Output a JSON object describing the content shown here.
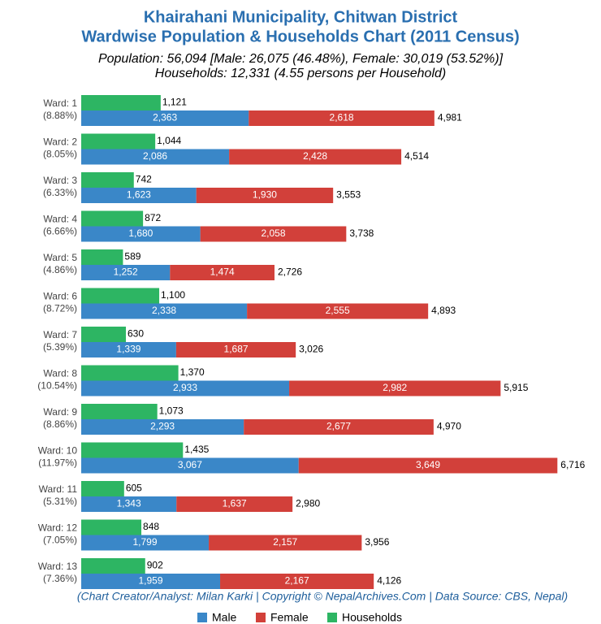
{
  "chart_data": {
    "type": "bar",
    "title": [
      "Khairahani Municipality, Chitwan District",
      "Wardwise Population & Households Chart (2011 Census)"
    ],
    "subtitle": [
      "Population: 56,094 [Male: 26,075 (46.48%), Female: 30,019 (53.52%)]",
      "Households: 12,331 (4.55 persons per Household)"
    ],
    "footer": "(Chart Creator/Analyst: Milan Karki | Copyright © NepalArchives.Com | Data Source: CBS, Nepal)",
    "categories": [
      "Ward: 1",
      "Ward: 2",
      "Ward: 3",
      "Ward: 4",
      "Ward: 5",
      "Ward: 6",
      "Ward: 7",
      "Ward: 8",
      "Ward: 9",
      "Ward: 10",
      "Ward: 11",
      "Ward: 12",
      "Ward: 13"
    ],
    "shares": [
      "(8.88%)",
      "(8.05%)",
      "(6.33%)",
      "(6.66%)",
      "(4.86%)",
      "(8.72%)",
      "(5.39%)",
      "(10.54%)",
      "(8.86%)",
      "(11.97%)",
      "(5.31%)",
      "(7.05%)",
      "(7.36%)"
    ],
    "series": [
      {
        "name": "Male",
        "color": "#3a87c8",
        "values": [
          2363,
          2086,
          1623,
          1680,
          1252,
          2338,
          1339,
          2933,
          2293,
          3067,
          1343,
          1799,
          1959
        ],
        "value_labels": [
          "2,363",
          "2,086",
          "1,623",
          "1,680",
          "1,252",
          "2,338",
          "1,339",
          "2,933",
          "2,293",
          "3,067",
          "1,343",
          "1,799",
          "1,959"
        ]
      },
      {
        "name": "Female",
        "color": "#d2403a",
        "values": [
          2618,
          2428,
          1930,
          2058,
          1474,
          2555,
          1687,
          2982,
          2677,
          3649,
          1637,
          2157,
          2167
        ],
        "value_labels": [
          "2,618",
          "2,428",
          "1,930",
          "2,058",
          "1,474",
          "2,555",
          "1,687",
          "2,982",
          "2,677",
          "3,649",
          "1,637",
          "2,157",
          "2,167"
        ]
      },
      {
        "name": "Households",
        "color": "#2db563",
        "values": [
          1121,
          1044,
          742,
          872,
          589,
          1100,
          630,
          1370,
          1073,
          1435,
          605,
          848,
          902
        ],
        "value_labels": [
          "1,121",
          "1,044",
          "742",
          "872",
          "589",
          "1,100",
          "630",
          "1,370",
          "1,073",
          "1,435",
          "605",
          "848",
          "902"
        ]
      }
    ],
    "totals": {
      "values": [
        4981,
        4514,
        3553,
        3738,
        2726,
        4893,
        3026,
        5915,
        4970,
        6716,
        2980,
        3956,
        4126
      ],
      "value_labels": [
        "4,981",
        "4,514",
        "3,553",
        "3,738",
        "2,726",
        "4,893",
        "3,026",
        "5,915",
        "4,970",
        "6,716",
        "2,980",
        "3,956",
        "4,126"
      ]
    }
  }
}
